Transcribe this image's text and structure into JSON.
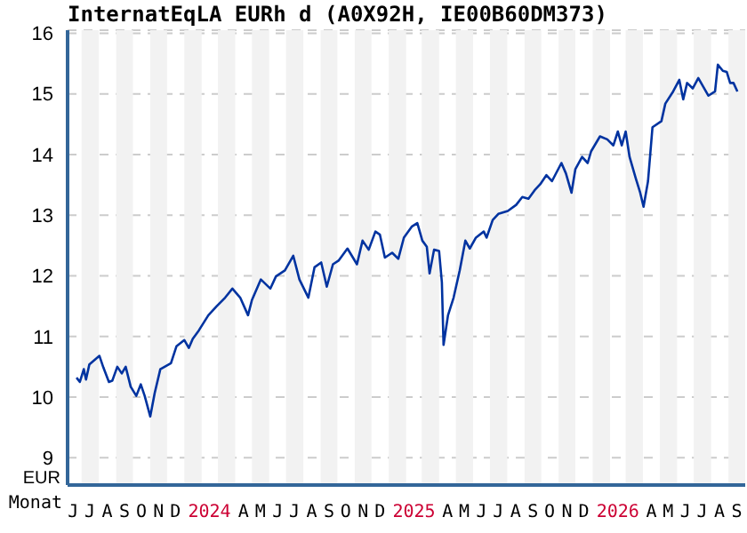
{
  "chart_data": {
    "type": "line",
    "title": "InternatEqLA EURh d (A0X92H, IE00B60DM373)",
    "xlabel": "Monat",
    "ylabel": "EUR",
    "xlim": [
      "2023-06-06",
      "2026-10-01"
    ],
    "ylim": [
      8.55,
      16.05
    ],
    "yticks": [
      9,
      10,
      11,
      12,
      13,
      14,
      15,
      16
    ],
    "xticks": [
      {
        "value": "2023-06-16",
        "label": "J"
      },
      {
        "value": "2023-07-16",
        "label": "J"
      },
      {
        "value": "2023-08-16",
        "label": "A"
      },
      {
        "value": "2023-09-16",
        "label": "S"
      },
      {
        "value": "2023-10-16",
        "label": "O"
      },
      {
        "value": "2023-11-16",
        "label": "N"
      },
      {
        "value": "2023-12-16",
        "label": "D"
      },
      {
        "value": "2024-02-15",
        "label": "2024"
      },
      {
        "value": "2024-04-16",
        "label": "A"
      },
      {
        "value": "2024-05-16",
        "label": "M"
      },
      {
        "value": "2024-06-16",
        "label": "J"
      },
      {
        "value": "2024-07-16",
        "label": "J"
      },
      {
        "value": "2024-08-16",
        "label": "A"
      },
      {
        "value": "2024-09-16",
        "label": "S"
      },
      {
        "value": "2024-10-16",
        "label": "O"
      },
      {
        "value": "2024-11-16",
        "label": "N"
      },
      {
        "value": "2024-12-16",
        "label": "D"
      },
      {
        "value": "2025-02-15",
        "label": "2025"
      },
      {
        "value": "2025-04-16",
        "label": "A"
      },
      {
        "value": "2025-05-16",
        "label": "M"
      },
      {
        "value": "2025-06-16",
        "label": "J"
      },
      {
        "value": "2025-07-16",
        "label": "J"
      },
      {
        "value": "2025-08-16",
        "label": "A"
      },
      {
        "value": "2025-09-16",
        "label": "S"
      },
      {
        "value": "2025-10-16",
        "label": "O"
      },
      {
        "value": "2025-11-16",
        "label": "N"
      },
      {
        "value": "2025-12-16",
        "label": "D"
      },
      {
        "value": "2026-02-15",
        "label": "2026"
      },
      {
        "value": "2026-04-16",
        "label": "A"
      },
      {
        "value": "2026-05-16",
        "label": "M"
      },
      {
        "value": "2026-06-16",
        "label": "J"
      },
      {
        "value": "2026-07-16",
        "label": "J"
      },
      {
        "value": "2026-08-16",
        "label": "A"
      },
      {
        "value": "2026-09-16",
        "label": "S"
      }
    ],
    "grid": "y",
    "marker": "none",
    "bands": [
      {
        "axis": "x",
        "from": "2023-07-01",
        "to": "2023-08-01",
        "color": "#f2f2f2"
      },
      {
        "axis": "x",
        "from": "2023-09-01",
        "to": "2023-10-01",
        "color": "#f2f2f2"
      },
      {
        "axis": "x",
        "from": "2023-11-01",
        "to": "2023-12-01",
        "color": "#f2f2f2"
      },
      {
        "axis": "x",
        "from": "2024-01-01",
        "to": "2024-02-01",
        "color": "#f2f2f2"
      },
      {
        "axis": "x",
        "from": "2024-03-01",
        "to": "2024-04-01",
        "color": "#f2f2f2"
      },
      {
        "axis": "x",
        "from": "2024-05-01",
        "to": "2024-06-01",
        "color": "#f2f2f2"
      },
      {
        "axis": "x",
        "from": "2024-07-01",
        "to": "2024-08-01",
        "color": "#f2f2f2"
      },
      {
        "axis": "x",
        "from": "2024-09-01",
        "to": "2024-10-01",
        "color": "#f2f2f2"
      },
      {
        "axis": "x",
        "from": "2024-11-01",
        "to": "2024-12-01",
        "color": "#f2f2f2"
      },
      {
        "axis": "x",
        "from": "2025-01-01",
        "to": "2025-02-01",
        "color": "#f2f2f2"
      },
      {
        "axis": "x",
        "from": "2025-03-01",
        "to": "2025-04-01",
        "color": "#f2f2f2"
      },
      {
        "axis": "x",
        "from": "2025-05-01",
        "to": "2025-06-01",
        "color": "#f2f2f2"
      },
      {
        "axis": "x",
        "from": "2025-07-01",
        "to": "2025-08-01",
        "color": "#f2f2f2"
      },
      {
        "axis": "x",
        "from": "2025-09-01",
        "to": "2025-10-01",
        "color": "#f2f2f2"
      },
      {
        "axis": "x",
        "from": "2025-11-01",
        "to": "2025-12-01",
        "color": "#f2f2f2"
      },
      {
        "axis": "x",
        "from": "2026-01-01",
        "to": "2026-02-01",
        "color": "#f2f2f2"
      },
      {
        "axis": "x",
        "from": "2026-03-01",
        "to": "2026-04-01",
        "color": "#f2f2f2"
      },
      {
        "axis": "x",
        "from": "2026-05-01",
        "to": "2026-06-01",
        "color": "#f2f2f2"
      },
      {
        "axis": "x",
        "from": "2026-07-01",
        "to": "2026-08-01",
        "color": "#f2f2f2"
      },
      {
        "axis": "x",
        "from": "2026-09-01",
        "to": "2026-10-01",
        "color": "#f2f2f2"
      }
    ],
    "line_style": "solid",
    "x": [
      "2023-06-22",
      "2023-06-28",
      "2023-07-05",
      "2023-07-09",
      "2023-07-15",
      "2023-08-02",
      "2023-08-09",
      "2023-08-19",
      "2023-08-25",
      "2023-09-03",
      "2023-09-11",
      "2023-09-18",
      "2023-09-27",
      "2023-10-07",
      "2023-10-15",
      "2023-10-22",
      "2023-11-01",
      "2023-11-09",
      "2023-11-19",
      "2023-12-08",
      "2023-12-18",
      "2024-01-01",
      "2024-01-09",
      "2024-01-16",
      "2024-01-27",
      "2024-02-13",
      "2024-02-28",
      "2024-03-14",
      "2024-03-27",
      "2024-04-10",
      "2024-04-24",
      "2024-05-01",
      "2024-05-17",
      "2024-06-03",
      "2024-06-13",
      "2024-06-29",
      "2024-07-14",
      "2024-07-25",
      "2024-08-10",
      "2024-08-21",
      "2024-09-02",
      "2024-09-12",
      "2024-09-23",
      "2024-10-03",
      "2024-10-19",
      "2024-11-05",
      "2024-11-15",
      "2024-11-26",
      "2024-12-08",
      "2024-12-16",
      "2024-12-25",
      "2025-01-07",
      "2025-01-18",
      "2025-01-28",
      "2025-02-11",
      "2025-02-21",
      "2025-03-02",
      "2025-03-10",
      "2025-03-15",
      "2025-03-23",
      "2025-04-01",
      "2025-04-06",
      "2025-04-09",
      "2025-04-17",
      "2025-04-27",
      "2025-05-08",
      "2025-05-18",
      "2025-05-26",
      "2025-06-06",
      "2025-06-20",
      "2025-06-25",
      "2025-07-06",
      "2025-07-16",
      "2025-08-02",
      "2025-08-17",
      "2025-08-28",
      "2025-09-08",
      "2025-09-19",
      "2025-09-29",
      "2025-10-10",
      "2025-10-20",
      "2025-11-06",
      "2025-11-14",
      "2025-11-24",
      "2025-12-01",
      "2025-12-13",
      "2025-12-23",
      "2025-12-29",
      "2026-01-14",
      "2026-01-27",
      "2026-02-07",
      "2026-02-15",
      "2026-02-22",
      "2026-03-01",
      "2026-03-08",
      "2026-03-19",
      "2026-03-27",
      "2026-04-02",
      "2026-04-10",
      "2026-04-18",
      "2026-05-04",
      "2026-05-11",
      "2026-05-25",
      "2026-06-05",
      "2026-06-12",
      "2026-06-19",
      "2026-06-29",
      "2026-07-09",
      "2026-07-27",
      "2026-08-08",
      "2026-08-13",
      "2026-08-22",
      "2026-08-29",
      "2026-09-04",
      "2026-09-10",
      "2026-09-17"
    ],
    "series": [
      {
        "color": "#0033a0",
        "values": [
          10.32,
          10.25,
          10.46,
          10.29,
          10.54,
          10.68,
          10.49,
          10.25,
          10.27,
          10.5,
          10.39,
          10.5,
          10.17,
          10.02,
          10.21,
          10.02,
          9.68,
          10.07,
          10.46,
          10.56,
          10.84,
          10.94,
          10.81,
          10.96,
          11.1,
          11.35,
          11.5,
          11.64,
          11.79,
          11.64,
          11.35,
          11.6,
          11.94,
          11.79,
          11.99,
          12.09,
          12.33,
          11.94,
          11.64,
          12.14,
          12.22,
          11.82,
          12.19,
          12.25,
          12.45,
          12.19,
          12.58,
          12.43,
          12.73,
          12.68,
          12.3,
          12.38,
          12.28,
          12.63,
          12.81,
          12.87,
          12.58,
          12.48,
          12.04,
          12.43,
          12.41,
          11.89,
          10.86,
          11.35,
          11.64,
          12.09,
          12.58,
          12.45,
          12.63,
          12.73,
          12.63,
          12.92,
          13.02,
          13.07,
          13.17,
          13.3,
          13.27,
          13.41,
          13.51,
          13.66,
          13.56,
          13.86,
          13.69,
          13.37,
          13.76,
          13.96,
          13.86,
          14.05,
          14.3,
          14.25,
          14.15,
          14.38,
          14.15,
          14.38,
          13.96,
          13.61,
          13.37,
          13.14,
          13.56,
          14.45,
          14.55,
          14.84,
          15.04,
          15.23,
          14.91,
          15.18,
          15.09,
          15.26,
          14.97,
          15.04,
          15.48,
          15.38,
          15.36,
          15.18,
          15.18,
          15.04
        ]
      }
    ]
  }
}
